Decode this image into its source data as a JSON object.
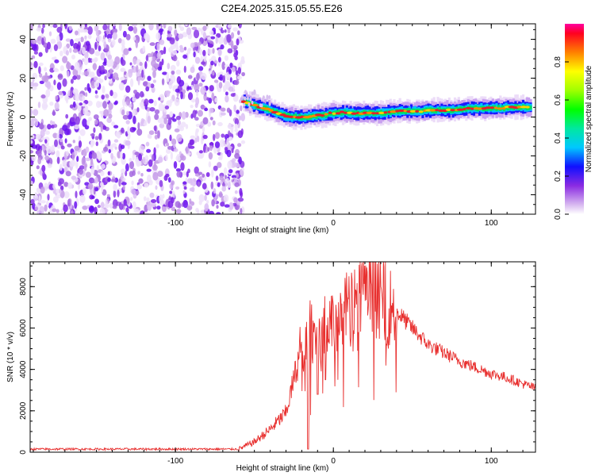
{
  "chart_data": [
    {
      "type": "heatmap",
      "title": "C2E4.2025.315.05.55.E26",
      "xlabel": "Height of straight line (km)",
      "ylabel": "Frequency (Hz)",
      "xlim": [
        -192,
        128
      ],
      "ylim": [
        -50,
        48
      ],
      "xticks": [
        -100,
        0,
        100
      ],
      "yticks": [
        -40,
        -20,
        0,
        20,
        40
      ],
      "noise_region_x": [
        -192,
        -57
      ],
      "signal_trace": {
        "x": [
          -57,
          -54,
          -50,
          -46,
          -42,
          -38,
          -34,
          -30,
          -26,
          -22,
          -18,
          -14,
          -10,
          -6,
          -2,
          2,
          6,
          10,
          15,
          20,
          25,
          30,
          35,
          40,
          45,
          50,
          55,
          60,
          65,
          70,
          75,
          80,
          85,
          90,
          95,
          100,
          105,
          110,
          115,
          120,
          125
        ],
        "y": [
          8,
          7,
          6,
          5,
          4,
          3,
          1.5,
          0.5,
          0,
          0,
          0,
          0.5,
          1,
          1,
          2,
          2,
          2.5,
          2,
          2,
          2,
          2,
          2,
          2.5,
          3,
          3,
          3,
          3,
          3.5,
          3.5,
          3.5,
          3.5,
          4,
          4.5,
          4.5,
          4.5,
          4.5,
          4.5,
          5,
          5,
          5,
          5
        ]
      },
      "colorbar": {
        "label": "Normalized spectral amplitude",
        "range": [
          0,
          1
        ],
        "ticks": [
          "0.0",
          "0.2",
          "0.4",
          "0.6",
          "0.8"
        ]
      }
    },
    {
      "type": "line",
      "title": "",
      "xlabel": "Height of straight line (km)",
      "ylabel": "SNR (10 * v/v)",
      "xlim": [
        -192,
        128
      ],
      "ylim": [
        0,
        9200
      ],
      "xticks": [
        -100,
        0,
        100
      ],
      "yticks": [
        0,
        2000,
        4000,
        6000,
        8000
      ],
      "color": "#e8302f",
      "envelope": {
        "x": [
          -192,
          -150,
          -100,
          -60,
          -50,
          -40,
          -30,
          -25,
          -20,
          -15,
          -10,
          -5,
          0,
          5,
          10,
          15,
          20,
          25,
          30,
          35,
          40,
          50,
          60,
          70,
          80,
          90,
          100,
          110,
          120,
          128
        ],
        "y": [
          150,
          150,
          150,
          150,
          500,
          1100,
          1900,
          3500,
          5200,
          5800,
          5700,
          6200,
          6200,
          6800,
          7000,
          7300,
          7800,
          7700,
          7500,
          7100,
          6800,
          6000,
          5200,
          4800,
          4400,
          4100,
          3800,
          3600,
          3300,
          3100
        ]
      },
      "dips": [
        {
          "x": -16,
          "y": 150
        },
        {
          "x": -10,
          "y": 2800
        },
        {
          "x": -5,
          "y": 3500
        }
      ]
    }
  ]
}
